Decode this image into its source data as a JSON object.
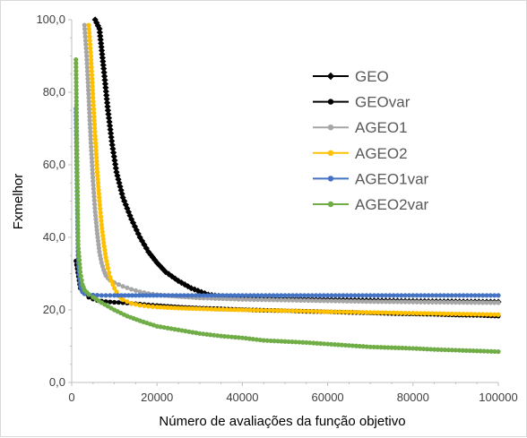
{
  "chart_data": {
    "type": "line",
    "title": "",
    "xlabel": "Número de avaliações da função objetivo",
    "ylabel": "Fxmelhor",
    "xlim": [
      0,
      100000
    ],
    "ylim": [
      0,
      100
    ],
    "x_ticks": [
      0,
      20000,
      40000,
      60000,
      80000,
      100000
    ],
    "y_ticks": [
      0,
      20,
      40,
      60,
      80,
      100
    ],
    "x_tick_labels": [
      "0",
      "20000",
      "40000",
      "60000",
      "80000",
      "100000"
    ],
    "y_tick_labels": [
      "0,0",
      "20,0",
      "40,0",
      "60,0",
      "80,0",
      "100,0"
    ],
    "grid": false,
    "legend_position": "top-right",
    "series": [
      {
        "name": "GEO",
        "color": "#000000",
        "marker": "diamond",
        "x": [
          5500,
          6500,
          7500,
          8500,
          9500,
          10500,
          12000,
          14000,
          16000,
          18000,
          20000,
          22000,
          25000,
          28000,
          32000,
          36000,
          40000,
          50000,
          60000,
          70000,
          80000,
          90000,
          100000
        ],
        "y": [
          100,
          97.5,
          86.5,
          75,
          65.5,
          58,
          51,
          45,
          40,
          36,
          33,
          30.5,
          28,
          26,
          24.2,
          23.6,
          23.3,
          23.0,
          22.8,
          22.6,
          22.4,
          22.3,
          22.2
        ]
      },
      {
        "name": "GEOvar",
        "color": "#000000",
        "marker": "circle",
        "x": [
          1000,
          2000,
          3000,
          4000,
          5000,
          6000,
          8000,
          10000,
          12000,
          15000,
          18000,
          20000,
          25000,
          30000,
          35000,
          40000,
          45000,
          50000,
          55000,
          60000,
          65000,
          70000,
          75000,
          80000,
          85000,
          90000,
          95000,
          100000
        ],
        "y": [
          33.5,
          26,
          24.5,
          23.5,
          23,
          22.6,
          22.3,
          22.1,
          22.0,
          21.7,
          21.4,
          21.2,
          20.8,
          20.5,
          20.3,
          20.1,
          19.9,
          19.8,
          19.6,
          19.5,
          19.3,
          19.2,
          19.0,
          18.9,
          18.8,
          18.6,
          18.5,
          18.3
        ]
      },
      {
        "name": "AGEO1",
        "color": "#a6a6a6",
        "marker": "circle",
        "x": [
          3000,
          3500,
          4000,
          4500,
          5000,
          5500,
          6000,
          6500,
          7000,
          7500,
          8000,
          8500,
          9000,
          10000,
          11000,
          12000,
          14000,
          16000,
          18000,
          20000,
          25000,
          30000,
          40000,
          50000,
          60000,
          70000,
          80000,
          90000,
          100000
        ],
        "y": [
          98.5,
          90,
          78.5,
          66,
          55.5,
          47,
          41,
          36,
          33,
          31,
          29.5,
          28.8,
          28.2,
          27.5,
          27,
          26.5,
          25.7,
          25,
          24.5,
          24.2,
          23.7,
          23.3,
          22.9,
          22.7,
          22.5,
          22.3,
          22.2,
          22.1,
          22.0
        ]
      },
      {
        "name": "AGEO2",
        "color": "#ffc000",
        "marker": "circle",
        "x": [
          4000,
          4500,
          5000,
          5500,
          6000,
          6500,
          7000,
          7500,
          8000,
          8500,
          9000,
          10000,
          11000,
          12000,
          14000,
          16000,
          18000,
          20000,
          25000,
          30000,
          40000,
          50000,
          60000,
          70000,
          80000,
          90000,
          100000
        ],
        "y": [
          98.5,
          90,
          78.5,
          68,
          58,
          50,
          43.5,
          38.5,
          34.5,
          31.5,
          29,
          26,
          24,
          22.8,
          21.8,
          21.3,
          21.0,
          20.8,
          20.5,
          20.3,
          20.0,
          19.8,
          19.5,
          19.3,
          19.1,
          18.9,
          18.7
        ]
      },
      {
        "name": "AGEO1var",
        "color": "#4472c4",
        "marker": "circle",
        "x": [
          1000,
          1500,
          2000,
          2500,
          3000,
          4000,
          5000,
          7000,
          10000,
          15000,
          20000,
          30000,
          40000,
          50000,
          60000,
          70000,
          80000,
          90000,
          100000
        ],
        "y": [
          75.5,
          33,
          26.5,
          25,
          24.5,
          24.2,
          24.1,
          24.0,
          24.0,
          24.0,
          24.0,
          24.0,
          24.0,
          24.0,
          24.0,
          24.0,
          24.0,
          24.0,
          24.0
        ]
      },
      {
        "name": "AGEO2var",
        "color": "#70ad47",
        "marker": "circle",
        "x": [
          1000,
          1500,
          2000,
          2500,
          3000,
          4000,
          5000,
          7000,
          10000,
          13000,
          16000,
          20000,
          25000,
          30000,
          35000,
          40000,
          45000,
          50000,
          55000,
          60000,
          65000,
          70000,
          75000,
          80000,
          85000,
          90000,
          95000,
          100000
        ],
        "y": [
          89,
          38,
          30.5,
          27,
          25.5,
          24.3,
          23.5,
          22,
          20,
          18.3,
          17,
          15.5,
          14.5,
          13.5,
          12.8,
          12.3,
          11.6,
          11.3,
          11.0,
          10.6,
          10.2,
          9.8,
          9.6,
          9.4,
          9.1,
          8.9,
          8.7,
          8.5
        ]
      }
    ]
  }
}
